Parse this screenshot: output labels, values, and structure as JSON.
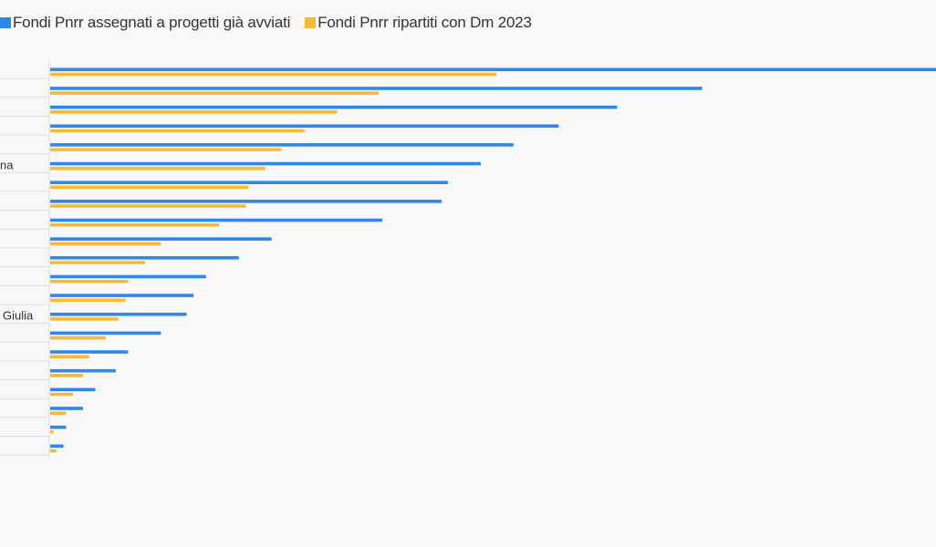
{
  "chart_data": {
    "type": "bar",
    "orientation": "horizontal",
    "title": "",
    "xlabel": "",
    "ylabel": "",
    "visible_category_labels": [
      {
        "index": 5,
        "text": "na"
      },
      {
        "index": 13,
        "text": "Giulia"
      }
    ],
    "series": [
      {
        "name": "Fondi Pnrr assegnati a progetti già avviati",
        "color": "#2e88e7",
        "values": [
          100,
          73.6,
          64.0,
          57.4,
          52.3,
          48.6,
          44.9,
          44.2,
          37.5,
          25.0,
          21.3,
          17.6,
          16.2,
          15.4,
          12.5,
          8.8,
          7.4,
          5.1,
          3.7,
          1.8,
          1.5
        ]
      },
      {
        "name": "Fondi Pnrr ripartiti con Dm 2023",
        "color": "#f8b937",
        "values": [
          50.4,
          37.1,
          32.4,
          28.7,
          26.1,
          24.3,
          22.4,
          22.1,
          19.1,
          12.5,
          10.7,
          8.8,
          8.5,
          7.7,
          6.3,
          4.4,
          3.7,
          2.6,
          1.8,
          0.4,
          0.7
        ]
      }
    ],
    "xlim": [
      0,
      100
    ],
    "grid": true,
    "legend_position": "top-left"
  }
}
